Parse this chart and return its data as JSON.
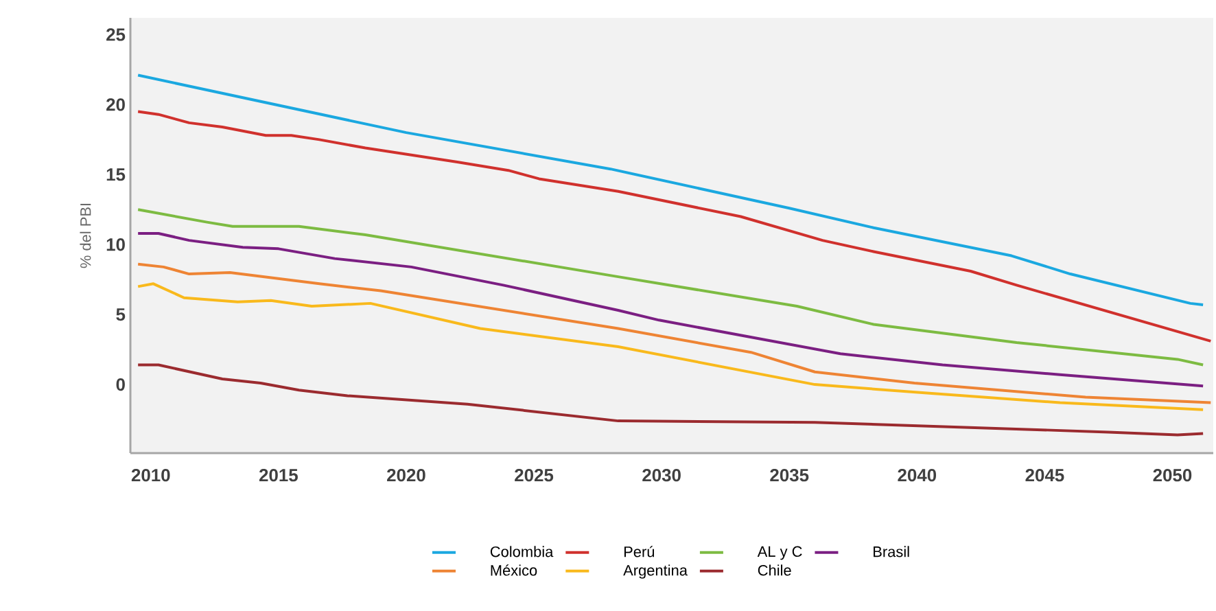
{
  "chart_data": {
    "type": "line",
    "ylabel": "% del PBI",
    "xlim": [
      2009.2,
      2051.6
    ],
    "ylim": [
      -4.9,
      26.2
    ],
    "xticks": [
      2010,
      2015,
      2020,
      2025,
      2030,
      2035,
      2040,
      2045,
      2050
    ],
    "yticks": [
      0,
      5,
      10,
      15,
      20,
      25
    ],
    "legend": "bottom",
    "marker": "none",
    "line_style": "solid",
    "series": [
      {
        "name": "Colombia",
        "color": "#1ba8e0",
        "x": [
          2009.5,
          2020,
          2028,
          2035,
          2038.3,
          2043.7,
          2046,
          2050.7,
          2051.2
        ],
        "values": [
          22.1,
          18.0,
          15.4,
          12.6,
          11.2,
          9.2,
          7.9,
          5.8,
          5.7
        ]
      },
      {
        "name": "Perú",
        "color": "#d0312d",
        "x": [
          2009.5,
          2010.3,
          2011.5,
          2012.8,
          2014.5,
          2015.5,
          2016.6,
          2018.4,
          2022.0,
          2024.0,
          2025.2,
          2028.3,
          2033.1,
          2036.3,
          2038.3,
          2042.1,
          2043.9,
          2051.5
        ],
        "values": [
          19.5,
          19.3,
          18.7,
          18.4,
          17.8,
          17.8,
          17.5,
          16.9,
          15.9,
          15.3,
          14.7,
          13.8,
          12.0,
          10.3,
          9.5,
          8.1,
          7.1,
          3.1
        ]
      },
      {
        "name": "AL y C",
        "color": "#7dbb42",
        "x": [
          2009.5,
          2012.2,
          2013.2,
          2015.8,
          2018.4,
          2028.3,
          2035.3,
          2038.3,
          2043.9,
          2050.2,
          2051.2
        ],
        "values": [
          12.5,
          11.6,
          11.3,
          11.3,
          10.7,
          7.7,
          5.6,
          4.3,
          3.0,
          1.8,
          1.4
        ]
      },
      {
        "name": "Brasil",
        "color": "#7b1f82",
        "x": [
          2009.5,
          2010.3,
          2011.5,
          2013.6,
          2015.0,
          2017.2,
          2020.2,
          2023.8,
          2028.3,
          2029.9,
          2037.0,
          2041.0,
          2045.6,
          2051.2
        ],
        "values": [
          10.8,
          10.8,
          10.3,
          9.8,
          9.7,
          9.0,
          8.4,
          7.1,
          5.3,
          4.6,
          2.2,
          1.4,
          0.7,
          -0.1
        ]
      },
      {
        "name": "México",
        "color": "#ee8434",
        "x": [
          2009.5,
          2010.5,
          2011.5,
          2013.1,
          2016.6,
          2019.0,
          2028.3,
          2033.5,
          2036.0,
          2039.9,
          2046.6,
          2051.5
        ],
        "values": [
          8.6,
          8.4,
          7.9,
          8.0,
          7.2,
          6.7,
          4.0,
          2.3,
          0.9,
          0.1,
          -0.9,
          -1.3
        ]
      },
      {
        "name": "Argentina",
        "color": "#f9b91c",
        "x": [
          2009.5,
          2010.1,
          2011.3,
          2013.4,
          2014.7,
          2016.3,
          2018.6,
          2022.9,
          2028.3,
          2036.0,
          2040.3,
          2045.6,
          2051.2
        ],
        "values": [
          7.0,
          7.2,
          6.2,
          5.9,
          6.0,
          5.6,
          5.8,
          4.0,
          2.7,
          0.0,
          -0.6,
          -1.3,
          -1.8
        ]
      },
      {
        "name": "Chile",
        "color": "#9b2b2f",
        "x": [
          2009.5,
          2010.3,
          2012.8,
          2014.3,
          2015.8,
          2017.7,
          2022.4,
          2028.3,
          2036.0,
          2047.5,
          2050.2,
          2051.2
        ],
        "values": [
          1.4,
          1.4,
          0.4,
          0.1,
          -0.4,
          -0.8,
          -1.4,
          -2.6,
          -2.7,
          -3.4,
          -3.6,
          -3.5
        ]
      }
    ]
  }
}
